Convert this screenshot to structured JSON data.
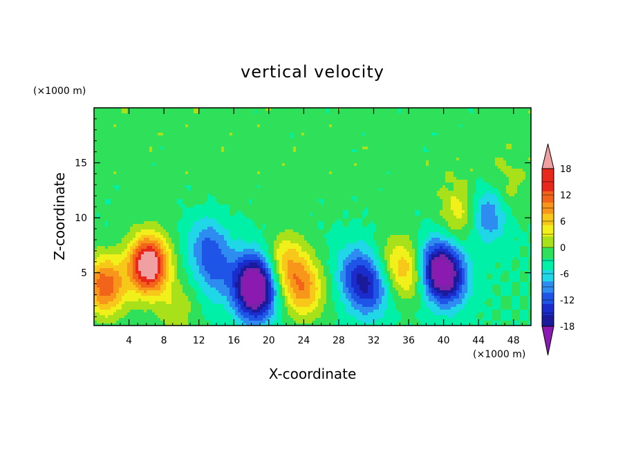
{
  "chart_data": {
    "type": "heatmap",
    "title": "vertical velocity",
    "xlabel": "X-coordinate",
    "ylabel": "Z-coordinate",
    "x_unit": "(×1000 m)",
    "y_unit": "(×1000 m)",
    "xlim": [
      0,
      50
    ],
    "ylim": [
      0.2,
      20
    ],
    "x_ticks": [
      4,
      8,
      12,
      16,
      20,
      24,
      28,
      32,
      36,
      40,
      44,
      48
    ],
    "y_ticks": [
      5,
      10,
      15
    ],
    "colorbar": {
      "levels": [
        -21,
        -18,
        -15,
        -12,
        -9,
        -6,
        -3,
        0,
        3,
        6,
        9,
        12,
        15,
        18,
        21
      ],
      "tick_labels": [
        "18",
        "12",
        "6",
        "0",
        "-6",
        "-12",
        "-18"
      ],
      "tick_values": [
        18,
        12,
        6,
        0,
        -6,
        -12,
        -18
      ],
      "colors": [
        "#7a22a8",
        "#1a1a9a",
        "#1a2dcc",
        "#1f55e6",
        "#2e8cf0",
        "#20d7e8",
        "#00f0a8",
        "#2ee05a",
        "#a8e01a",
        "#f2f01a",
        "#f7c81a",
        "#f7961a",
        "#f2641a",
        "#e8281a",
        "#f0a0a0"
      ],
      "under_color": "#8a1ab0",
      "over_color": "#f0a0a0"
    },
    "features": [
      {
        "x": 1.0,
        "z": 4.2,
        "value": 8
      },
      {
        "x": 1.5,
        "z": 3.5,
        "value": 10
      },
      {
        "x": 6.2,
        "z": 6.2,
        "value": 14
      },
      {
        "x": 6.3,
        "z": 5.2,
        "value": 13
      },
      {
        "x": 9.5,
        "z": 1.5,
        "value": 5
      },
      {
        "x": 13.0,
        "z": 7.5,
        "value": -8
      },
      {
        "x": 14.0,
        "z": 5.0,
        "value": -7
      },
      {
        "x": 18.5,
        "z": 3.0,
        "value": -17
      },
      {
        "x": 18.2,
        "z": 4.5,
        "value": -14
      },
      {
        "x": 22.0,
        "z": 6.0,
        "value": 10
      },
      {
        "x": 24.0,
        "z": 3.5,
        "value": 13
      },
      {
        "x": 30.0,
        "z": 5.0,
        "value": -9
      },
      {
        "x": 31.5,
        "z": 3.5,
        "value": -11
      },
      {
        "x": 34.5,
        "z": 6.0,
        "value": 6
      },
      {
        "x": 36.5,
        "z": 5.0,
        "value": 9
      },
      {
        "x": 39.0,
        "z": 5.5,
        "value": -16
      },
      {
        "x": 40.5,
        "z": 4.5,
        "value": -15
      },
      {
        "x": 42.0,
        "z": 10.5,
        "value": 8
      },
      {
        "x": 45.0,
        "z": 10.5,
        "value": -11
      },
      {
        "x": 47.0,
        "z": 12.5,
        "value": 4
      }
    ]
  }
}
